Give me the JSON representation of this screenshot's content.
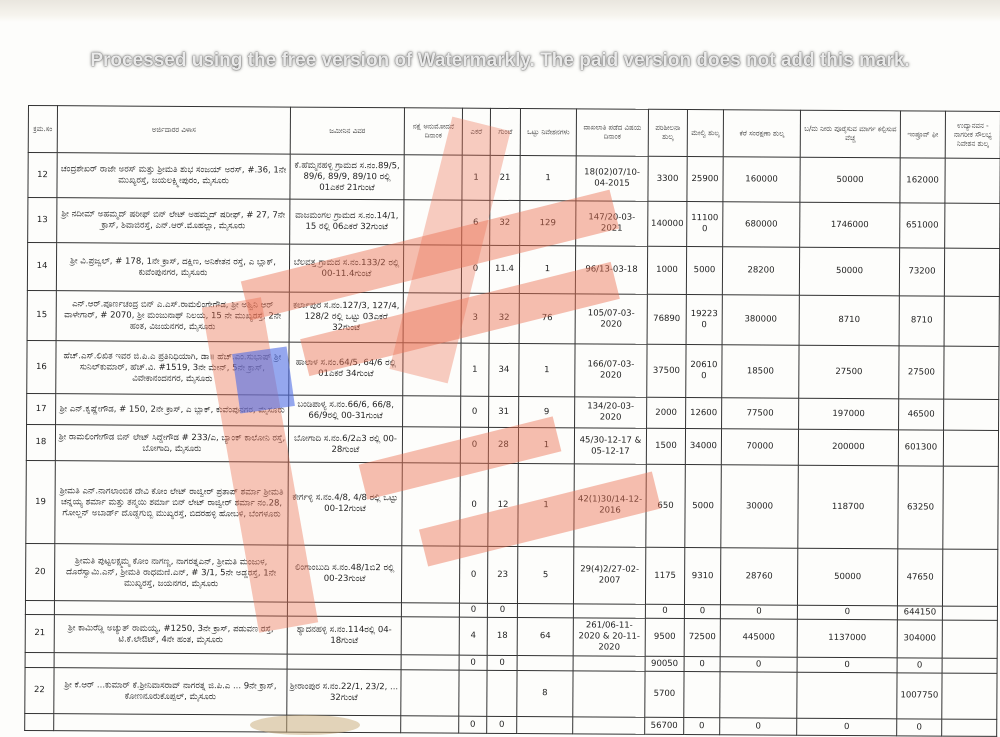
{
  "table": {
    "headers": [
      "ಕ್ರಮ.ಸಂ",
      "ಅರ್ಜಿದಾರರ ವಿಳಾಸ",
      "ಜಮೀನಿನ ವಿವರ",
      "ನಕ್ಷೆ ಅನುಮೋದನೆ ದಿನಾಂಕ",
      "ಎಕರೆ",
      "ಗುಂಟೆ",
      "ಒಟ್ಟು ನಿವೇಶನಗಳು",
      "ದಾಖಲಾತಿ ಪಡೆದ ವಿಷಯ ದಿನಾಂಕ",
      "ಪರಿಶೀಲನಾ ಶುಲ್ಕ",
      "ಮೇಲ್ವಿ ಶುಲ್ಕ",
      "ಕೆರೆ ಸಂರಕ್ಷಣಾ ಶುಲ್ಕ",
      "ಬ/ಮ ನೀರು ಪೂರೈಸುವ ಮಾರ್ಗ ಕಲ್ಪಿಸುವ ವೆಚ್ಚ",
      "ಇಂಪ್ರೂವ್ ಫೀ",
      "ಉದ್ಯಾನವನ - ನಾಗರೀಕ ಸೌಲಭ್ಯ ನಿವೇಶನ ಶುಲ್ಕ"
    ],
    "rows": [
      {
        "cells": [
          "12",
          "ಚಂದ್ರಶೇಖರ್ ರಾಜೇ ಅರಸ್ ಮತ್ತು ಶ್ರೀಮತಿ ಶುಭ ಸಂಜಯ್ ಅರಸ್, #.36, 1ನೇ ಮುಖ್ಯರಸ್ತೆ, ಜಯಲಕ್ಷ್ಮೀಪುರಂ, ಮೈಸೂರು",
          "ಕೆ.ಹೆಮ್ಮನಹಳ್ಳಿ ಗ್ರಾಮದ ಸ.ನಂ.89/5, 89/6, 89/9, 89/10 ರಲ್ಲಿ 01ಎಕರೆ 21ಗುಂಟೆ",
          "",
          "1",
          "21",
          "1",
          "18(02)07/10-04-2015",
          "3300",
          "25900",
          "160000",
          "50000",
          "162000",
          ""
        ]
      },
      {
        "cells": [
          "13",
          "ಶ್ರೀ ನದೀಮ್ ಅಹಮ್ಮದ್ ಷರೀಫ್ ಬಿನ್ ಲೇಟ್ ಅಹಮ್ಮದ್ ಷರೀಫ್, # 27, 7ನೇ ಕ್ರಾಸ್, ಶಿವಾಜಿರಸ್ತೆ, ಎನ್.ಆರ್.ಮೊಹಲ್ಲಾ, ಮೈಸೂರು",
          "ವಾಜಮಂಗಲ ಗ್ರಾಮದ ಸ.ನಂ.14/1, 15 ರಲ್ಲಿ 06ಎಕರೆ 32ಗುಂಟೆ",
          "",
          "6",
          "32",
          "129",
          "147/20-03-2021",
          "140000",
          "111000",
          "680000",
          "1746000",
          "651000",
          ""
        ]
      },
      {
        "cells": [
          "14",
          "ಶ್ರೀ ವಿ.ಪ್ರಜ್ವಲ್, # 178, 1ನೇ ಕ್ರಾಸ್, ದಕ್ಷಿಣ, ಅನಿಕೇತನ ರಸ್ತೆ, ಎ ಬ್ಲಾಕ್, ಕುವೆಂಪುನಗರ, ಮೈಸೂರು",
          "ಬೆಲವತ್ತ ಗ್ರಾಮದ ಸ.ನಂ.133/2 ರಲ್ಲಿ 00-11.4ಗುಂಟೆ",
          "",
          "0",
          "11.4",
          "1",
          "96/13-03-18",
          "1000",
          "5000",
          "28200",
          "50000",
          "73200",
          ""
        ]
      },
      {
        "cells": [
          "15",
          "ಎನ್.ಆರ್.ಪೂರ್ಣಚಂದ್ರ ಬಿನ್ ಎ.ಎಸ್.ರಾಮಲಿಂಗೇಗೌಡ, ಶ್ರೀ ಅಶ್ವಿನಿ ಆರ್ ವಾಳೇಗಾರ್, # 2070, ಶ್ರೀ ಮಂಜುನಾಥ್ ನಿಲಯ, 15 ನೇ ಮುಖ್ಯರಸ್ತೆ, 2ನೇ ಹಂತ, ವಿಜಯನಗರ, ಮೈಸೂರು",
          "ಕರ್ಲಾಪುರ ಸ.ನಂ.127/3, 127/4, 128/2 ರಲ್ಲಿ ಒಟ್ಟು 03ಎಕರೆ 32ಗುಂಟೆ",
          "",
          "3",
          "32",
          "76",
          "105/07-03-2020",
          "76890",
          "192230",
          "380000",
          "8710",
          "8710",
          ""
        ]
      },
      {
        "cells": [
          "16",
          "ಹೆಚ್.ಎಸ್.ಲಿಖಿತ ಇವರ ಜಿ.ಪಿ.ಎ ಪ್ರತಿನಿಧಿಯಾಗಿ, ಡಾ॥ ಹೆಚ್.ಎಂ.ಸುಭಾಷ್ ಶ್ರೀ ಸುನಿಲ್‌ಕುಮಾರ್, ಹೆಚ್.ವಿ. #1519, 3ನೇ ಮೇನ್, 5ನೇ ಕ್ರಾಸ್, ವಿವೇಕಾನಂದನಗರ, ಮೈಸೂರು",
          "ಹಾಲಾಳ ಸ.ನಂ.64/5, 64/6 ರಲ್ಲಿ 01ಎಕರೆ 34ಗುಂಟೆ",
          "",
          "1",
          "34",
          "1",
          "166/07-03-2020",
          "37500",
          "206100",
          "18500",
          "27500",
          "27500",
          ""
        ]
      },
      {
        "cells": [
          "17",
          "ಶ್ರೀ ಎನ್.ಕೃಷ್ಣೇಗೌಡ, # 150, 2ನೇ ಕ್ರಾಸ್, ಎ ಬ್ಲಾಕ್, ಕುವೆಂಪುನಗರ, ಮೈಸೂರು",
          "ಬಂಡಿಪಾಳ್ಯ ಸ.ನಂ.66/6, 66/8, 66/9ರಲ್ಲಿ 00-31ಗುಂಟೆ",
          "",
          "0",
          "31",
          "9",
          "134/20-03-2020",
          "2000",
          "12600",
          "77500",
          "197000",
          "46500",
          ""
        ]
      },
      {
        "cells": [
          "18",
          "ಶ್ರೀ ರಾಮಲಿಂಗೇಗೌಡ ಬಿನ್ ಲೇಟ್ ಸಿದ್ದೇಗೌಡ # 233/ಎ, ಬ್ಯಾಂಕ್ ಕಾಲೋನಿ ರಸ್ತೆ, ಬೋಗಾದಿ, ಮೈಸೂರು",
          "ಬೋಗಾದಿ ಸ.ನಂ.6/2ಎ3 ರಲ್ಲಿ 00-28ಗುಂಟೆ",
          "",
          "0",
          "28",
          "1",
          "45/30-12-17 & 05-12-17",
          "1500",
          "34000",
          "70000",
          "200000",
          "601300",
          ""
        ]
      },
      {
        "cells": [
          "19",
          "ಶ್ರೀಮತಿ ಎನ್.ನಾಗಲಾಂಬಿಕ ದೇವಿ ಕೋಂ ಲೇಟ್ ರಾಜ್ವೀರ್ ಪ್ರತಾಪ್ ಶರ್ಮಾ ಶ್ರೀಮತಿ ಚನ್ನಯ್ಯ ಶರ್ಮಾ ಮತ್ತು ತನ್ಮಯಿ ಶರ್ಮಾ ಬಿನ್ ಲೇಟ್ ರಾಜ್ವೀರ್ ಶರ್ಮಾ ನಂ.28, ಗೋಲ್ಡನ್ ಅಬಾರ್ಡ್ ದೊಡ್ಡಗುಬ್ಬಿ ಮುಖ್ಯರಸ್ತೆ, ಬಿದರಹಳ್ಳಿ ಹೋಬಳಿ, ಬೆಂಗಳೂರು",
          "ಕೇರ್ಗಳ್ಳಿ ಸ.ನಂ.4/8, 4/8 ರಲ್ಲಿ ಒಟ್ಟು 00-12ಗುಂಟೆ",
          "",
          "0",
          "12",
          "1",
          "42(1)30/14-12-2016",
          "650",
          "5000",
          "30000",
          "118700",
          "63250",
          ""
        ]
      },
      {
        "cells": [
          "20",
          "ಶ್ರೀಮತಿ ಪುಟ್ಟಲಕ್ಷ್ಮಮ್ಮ ಕೋಂ ನಾಗಣ್ಣ, ನಾಗರತ್ನಎನ್, ಶ್ರೀಮತಿ ಮಂಜುಳ, ದೊರೆಸ್ವಾಮಿ.ಎನ್, ಶ್ರೀಮತಿ ರಾಧಮಣಿ.ಎನ್, # 3/1, 5ನೇ ಅಡ್ಡರಸ್ತೆ, 1ನೇ ಮುಖ್ಯರಸ್ತೆ, ಜಯನಗರ, ಮೈಸೂರು",
          "ಲಿಂಗಾಂಬುದಿ ಸ.ನಂ.48/1ಬಿ2 ರಲ್ಲಿ 00-23ಗುಂಟೆ",
          "",
          "0",
          "23",
          "5",
          "29(4)2/27-02-2007",
          "1175",
          "9310",
          "28760",
          "50000",
          "47650",
          ""
        ]
      },
      {
        "cells": [
          "",
          "",
          "",
          "",
          "0",
          "0",
          "",
          "",
          "0",
          "0",
          "0",
          "0",
          "644150",
          ""
        ]
      },
      {
        "cells": [
          "21",
          "ಶ್ರೀ ಕಾಮಿರೆಡ್ಡಿ ಅಚ್ಯುತ್ ರಾಮಯ್ಯ, #1250, 3ನೇ ಕ್ರಾಸ್, ಪಡುವಣ ರಸ್ತೆ, ಟಿ.ಕೆ.ಲೇಔಟ್, 4ನೇ ಹಂತ, ಮೈಸೂರು",
          "ಶ್ಯಾದನಹಳ್ಳಿ ಸ.ನಂ.114ರಲ್ಲಿ 04-18ಗುಂಟೆ",
          "",
          "4",
          "18",
          "64",
          "261/06-11-2020 & 20-11-2020",
          "9500",
          "72500",
          "445000",
          "1137000",
          "304000",
          ""
        ]
      },
      {
        "cells": [
          "",
          "",
          "",
          "",
          "0",
          "0",
          "",
          "",
          "90050",
          "0",
          "0",
          "0",
          "0",
          ""
        ]
      },
      {
        "cells": [
          "22",
          "ಶ್ರೀ ಕೆ.ಆರ್ ...ಕುಮಾರ್ ಕೆ.ಶ್ರೀನಿವಾಸರಾವ್ ನಾಗರತ್ನ ಜಿ.ಪಿ.ಎ ... 9ನೇ ಕ್ರಾಸ್, ಕೋಣನೂರುಕೊಪ್ಪಲ್, ಮೈಸೂರು",
          "ಶ್ರೀರಾಂಪುರ ಸ.ನಂ.22/1, 23/2, ... 32ಗುಂಟೆ",
          "",
          "",
          "",
          "8",
          "",
          "5700",
          "",
          "",
          "",
          "1007750",
          ""
        ]
      },
      {
        "cells": [
          "",
          "",
          "",
          "",
          "0",
          "0",
          "",
          "",
          "56700",
          "0",
          "0",
          "0",
          "0",
          ""
        ]
      }
    ]
  },
  "watermark": "Processed using the free version of Watermarkly. The paid version does not add this mark.",
  "colors": {
    "overlay_orange": "#eb6e50",
    "overlay_blue": "#506ee6",
    "ink": "#222222"
  }
}
